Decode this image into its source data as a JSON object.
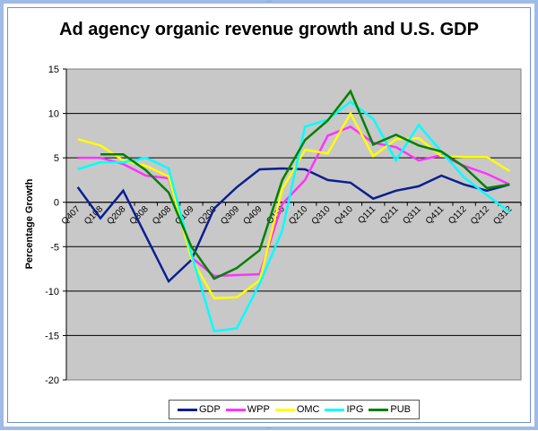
{
  "window": {
    "handle_glyph": "····"
  },
  "chart_data": {
    "type": "line",
    "title": "Ad agency organic revenue growth and U.S. GDP",
    "xlabel": "",
    "ylabel": "Percentage Growth",
    "ylim": [
      -20,
      15
    ],
    "yticks": [
      15,
      10,
      5,
      0,
      -5,
      -10,
      -15,
      -20
    ],
    "grid": true,
    "legend_position": "bottom",
    "categories": [
      "Q407",
      "Q108",
      "Q208",
      "Q308",
      "Q408",
      "Q109",
      "Q209",
      "Q309",
      "Q409",
      "Q110",
      "Q210",
      "Q310",
      "Q410",
      "Q111",
      "Q211",
      "Q311",
      "Q411",
      "Q112",
      "Q212",
      "Q312"
    ],
    "series": [
      {
        "name": "GDP",
        "color": "#0b1f8f",
        "values": [
          1.7,
          -1.8,
          1.3,
          -3.8,
          -8.9,
          -6.5,
          -0.7,
          1.7,
          3.7,
          3.8,
          3.7,
          2.5,
          2.2,
          0.4,
          1.3,
          1.8,
          3.0,
          2.0,
          1.3,
          2.0
        ]
      },
      {
        "name": "WPP",
        "color": "#ff33ff",
        "values": [
          5.0,
          5.0,
          4.3,
          3.0,
          2.7,
          -6.2,
          -8.3,
          -8.2,
          -8.1,
          -0.2,
          2.5,
          7.5,
          8.5,
          6.7,
          6.2,
          4.7,
          5.3,
          4.1,
          3.2,
          2.0
        ]
      },
      {
        "name": "OMC",
        "color": "#ffff00",
        "values": [
          7.1,
          6.4,
          4.7,
          4.1,
          2.9,
          -6.3,
          -10.8,
          -10.7,
          -8.8,
          1.5,
          5.9,
          5.5,
          10.0,
          5.2,
          7.1,
          7.2,
          5.2,
          5.1,
          5.1,
          3.5
        ]
      },
      {
        "name": "IPG",
        "color": "#00ffff",
        "values": [
          3.7,
          4.5,
          4.5,
          5.0,
          3.8,
          -5.8,
          -14.5,
          -14.2,
          -9.2,
          -3.2,
          8.5,
          9.3,
          11.3,
          9.4,
          4.7,
          8.7,
          5.7,
          2.8,
          0.8,
          -1.1
        ]
      },
      {
        "name": "PUB",
        "color": "#008000",
        "values": [
          null,
          5.4,
          5.4,
          3.6,
          1.1,
          -5.0,
          -8.6,
          -7.4,
          -5.4,
          2.5,
          7.0,
          9.2,
          12.5,
          6.5,
          7.6,
          6.4,
          5.7,
          4.0,
          1.6,
          2.0
        ]
      }
    ]
  }
}
